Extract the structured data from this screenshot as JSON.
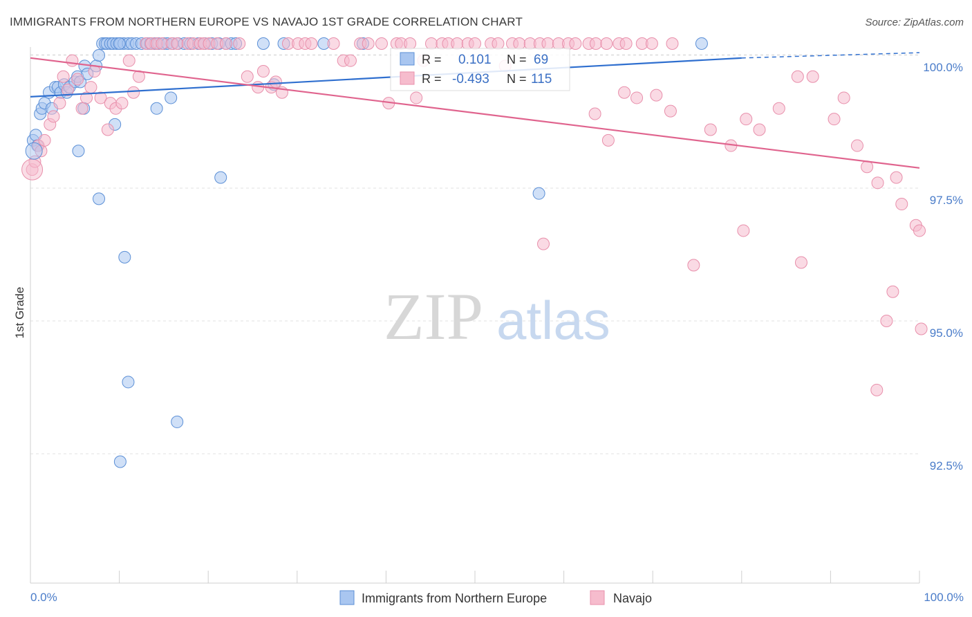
{
  "chart_data": {
    "type": "scatter",
    "title": "IMMIGRANTS FROM NORTHERN EUROPE VS NAVAJO 1ST GRADE CORRELATION CHART",
    "source": "Source: ZipAtlas.com",
    "xlabel": "",
    "ylabel": "1st Grade",
    "xlim": [
      0,
      100
    ],
    "ylim": [
      90.0,
      100.2
    ],
    "x_tick_labels": {
      "left": "0.0%",
      "right": "100.0%"
    },
    "y_ticks": [
      {
        "value": 100.0,
        "label": "100.0%"
      },
      {
        "value": 97.5,
        "label": "97.5%"
      },
      {
        "value": 95.0,
        "label": "95.0%"
      },
      {
        "value": 92.5,
        "label": "92.5%"
      }
    ],
    "watermark": {
      "zip": "ZIP",
      "atlas": "atlas"
    },
    "colors": {
      "blue_fill": "#a9c6f0",
      "blue_stroke": "#5b8fd6",
      "blue_line": "#2f6fcf",
      "pink_fill": "#f6bccd",
      "pink_stroke": "#e88fab",
      "pink_line": "#e0648e",
      "axis_label": "#4a7cc9",
      "grid": "#e2e2e2"
    },
    "legend_stats": [
      {
        "r_label": "R =",
        "r_value": "0.101",
        "n_label": "N =",
        "n_value": "69"
      },
      {
        "r_label": "R =",
        "r_value": "-0.493",
        "n_label": "N =",
        "n_value": "115"
      }
    ],
    "series": [
      {
        "name": "Immigrants from Northern Europe",
        "color": "blue",
        "trend": {
          "x0": 0,
          "y0": 99.22,
          "x1": 80,
          "y1": 99.95,
          "dash_to_x": 100,
          "dash_y": 100.05
        },
        "points": [
          [
            0.3,
            98.4
          ],
          [
            0.6,
            98.5
          ],
          [
            0.8,
            98.3
          ],
          [
            1.1,
            98.9
          ],
          [
            1.3,
            99.0
          ],
          [
            1.6,
            99.1
          ],
          [
            2.1,
            99.3
          ],
          [
            2.4,
            99.0
          ],
          [
            2.8,
            99.4
          ],
          [
            3.1,
            99.4
          ],
          [
            3.4,
            99.3
          ],
          [
            3.8,
            99.45
          ],
          [
            4.1,
            99.3
          ],
          [
            4.4,
            99.4
          ],
          [
            5.0,
            99.5
          ],
          [
            5.3,
            99.6
          ],
          [
            5.6,
            99.5
          ],
          [
            6.1,
            99.8
          ],
          [
            6.4,
            99.65
          ],
          [
            7.4,
            99.8
          ],
          [
            7.7,
            100.0
          ],
          [
            8.1,
            100.2
          ],
          [
            8.4,
            100.2
          ],
          [
            8.6,
            100.2
          ],
          [
            9.0,
            100.2
          ],
          [
            9.3,
            100.2
          ],
          [
            9.7,
            100.2
          ],
          [
            10.1,
            100.2
          ],
          [
            10.5,
            100.2
          ],
          [
            11.0,
            100.2
          ],
          [
            11.4,
            100.2
          ],
          [
            11.9,
            100.2
          ],
          [
            12.5,
            100.2
          ],
          [
            13.1,
            100.2
          ],
          [
            13.5,
            100.2
          ],
          [
            14.0,
            100.2
          ],
          [
            14.4,
            100.2
          ],
          [
            15.0,
            100.2
          ],
          [
            15.4,
            100.2
          ],
          [
            16.0,
            100.2
          ],
          [
            16.6,
            100.2
          ],
          [
            17.3,
            100.2
          ],
          [
            18.0,
            100.2
          ],
          [
            18.9,
            100.2
          ],
          [
            19.6,
            100.2
          ],
          [
            20.4,
            100.2
          ],
          [
            21.2,
            100.2
          ],
          [
            22.0,
            100.2
          ],
          [
            22.6,
            100.2
          ],
          [
            23.1,
            100.2
          ],
          [
            26.2,
            100.2
          ],
          [
            28.5,
            100.2
          ],
          [
            33.0,
            100.2
          ],
          [
            37.4,
            100.2
          ],
          [
            6.0,
            99.0
          ],
          [
            9.5,
            98.7
          ],
          [
            14.2,
            99.0
          ],
          [
            15.8,
            99.2
          ],
          [
            27.4,
            99.45
          ],
          [
            5.4,
            98.2
          ],
          [
            10.0,
            100.2
          ],
          [
            21.4,
            97.7
          ],
          [
            7.7,
            97.3
          ],
          [
            10.6,
            96.2
          ],
          [
            11.0,
            93.85
          ],
          [
            16.5,
            93.1
          ],
          [
            10.1,
            92.35
          ],
          [
            57.2,
            97.4
          ],
          [
            75.5,
            100.2
          ]
        ]
      },
      {
        "name": "Navajo",
        "color": "pink",
        "trend": {
          "x0": 0,
          "y0": 99.95,
          "x1": 100,
          "y1": 97.88
        },
        "points": [
          [
            0.2,
            97.85
          ],
          [
            0.5,
            98.0
          ],
          [
            0.9,
            98.3
          ],
          [
            1.2,
            98.2
          ],
          [
            1.6,
            98.4
          ],
          [
            2.2,
            98.7
          ],
          [
            2.6,
            98.85
          ],
          [
            3.3,
            99.1
          ],
          [
            3.7,
            99.6
          ],
          [
            4.2,
            99.35
          ],
          [
            4.7,
            99.9
          ],
          [
            5.3,
            99.55
          ],
          [
            5.8,
            99.0
          ],
          [
            6.3,
            99.2
          ],
          [
            6.8,
            99.4
          ],
          [
            7.2,
            99.7
          ],
          [
            7.9,
            99.2
          ],
          [
            8.7,
            98.6
          ],
          [
            9.0,
            99.1
          ],
          [
            9.6,
            99.0
          ],
          [
            10.3,
            99.1
          ],
          [
            11.1,
            99.9
          ],
          [
            11.6,
            99.3
          ],
          [
            12.2,
            99.6
          ],
          [
            13.0,
            100.2
          ],
          [
            13.6,
            100.2
          ],
          [
            14.2,
            100.2
          ],
          [
            14.8,
            100.2
          ],
          [
            15.9,
            100.2
          ],
          [
            16.5,
            100.2
          ],
          [
            17.7,
            100.2
          ],
          [
            18.3,
            100.2
          ],
          [
            19.1,
            100.2
          ],
          [
            19.5,
            100.2
          ],
          [
            20.1,
            100.2
          ],
          [
            21.0,
            100.2
          ],
          [
            22.0,
            100.2
          ],
          [
            23.5,
            100.2
          ],
          [
            24.4,
            99.6
          ],
          [
            25.6,
            99.4
          ],
          [
            26.2,
            99.7
          ],
          [
            27.1,
            99.4
          ],
          [
            27.6,
            99.5
          ],
          [
            28.3,
            99.3
          ],
          [
            29.0,
            100.2
          ],
          [
            30.1,
            100.2
          ],
          [
            30.9,
            100.2
          ],
          [
            31.6,
            100.2
          ],
          [
            34.1,
            100.2
          ],
          [
            35.2,
            99.9
          ],
          [
            36.0,
            99.9
          ],
          [
            37.1,
            100.2
          ],
          [
            38.0,
            100.2
          ],
          [
            39.5,
            100.2
          ],
          [
            40.3,
            99.1
          ],
          [
            41.2,
            100.2
          ],
          [
            41.7,
            100.2
          ],
          [
            42.7,
            100.2
          ],
          [
            43.4,
            99.2
          ],
          [
            44.2,
            99.9
          ],
          [
            45.1,
            100.2
          ],
          [
            46.3,
            100.2
          ],
          [
            47.0,
            100.2
          ],
          [
            48.0,
            100.2
          ],
          [
            49.2,
            100.2
          ],
          [
            50.0,
            100.2
          ],
          [
            51.8,
            100.2
          ],
          [
            52.6,
            100.2
          ],
          [
            53.4,
            99.8
          ],
          [
            54.2,
            100.2
          ],
          [
            55.0,
            100.2
          ],
          [
            56.2,
            100.2
          ],
          [
            57.3,
            100.2
          ],
          [
            58.2,
            100.2
          ],
          [
            59.4,
            100.2
          ],
          [
            60.5,
            100.2
          ],
          [
            61.3,
            100.2
          ],
          [
            62.8,
            100.2
          ],
          [
            63.6,
            100.2
          ],
          [
            64.8,
            100.2
          ],
          [
            66.2,
            100.2
          ],
          [
            67.0,
            100.2
          ],
          [
            68.8,
            100.2
          ],
          [
            69.9,
            100.2
          ],
          [
            72.2,
            100.2
          ],
          [
            63.5,
            98.9
          ],
          [
            66.8,
            99.3
          ],
          [
            68.2,
            99.2
          ],
          [
            70.4,
            99.25
          ],
          [
            72.0,
            98.95
          ],
          [
            65.0,
            98.4
          ],
          [
            76.5,
            98.6
          ],
          [
            78.8,
            98.3
          ],
          [
            80.5,
            98.8
          ],
          [
            82.0,
            98.6
          ],
          [
            84.2,
            99.0
          ],
          [
            86.3,
            99.6
          ],
          [
            88.0,
            99.6
          ],
          [
            90.4,
            98.8
          ],
          [
            91.5,
            99.2
          ],
          [
            93.0,
            98.3
          ],
          [
            94.1,
            97.9
          ],
          [
            95.3,
            97.6
          ],
          [
            97.4,
            97.7
          ],
          [
            98.0,
            97.2
          ],
          [
            99.6,
            96.8
          ],
          [
            100.0,
            96.7
          ],
          [
            97.0,
            95.55
          ],
          [
            96.3,
            95.0
          ],
          [
            95.2,
            93.7
          ],
          [
            100.2,
            94.85
          ],
          [
            57.7,
            96.45
          ],
          [
            74.6,
            96.05
          ],
          [
            86.7,
            96.1
          ],
          [
            80.2,
            96.7
          ]
        ]
      }
    ]
  },
  "legend_bottom": [
    {
      "label": "Immigrants from Northern Europe",
      "color": "blue"
    },
    {
      "label": "Navajo",
      "color": "pink"
    }
  ]
}
